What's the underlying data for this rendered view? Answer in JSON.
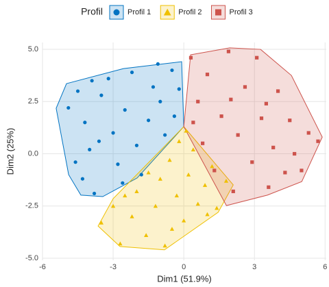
{
  "chart_data": {
    "type": "scatter",
    "legend_title": "Profil",
    "xlabel": "Dim1 (51.9%)",
    "ylabel": "Dim2 (25%)",
    "xlim": [
      -6,
      6.05
    ],
    "ylim": [
      -5.1,
      5.33
    ],
    "xticks": [
      -6,
      -3,
      0,
      3,
      6
    ],
    "yticks": [
      {
        "value": -5,
        "label": "-5.0"
      },
      {
        "value": -2.5,
        "label": "-2.5"
      },
      {
        "value": 0,
        "label": "0.0"
      },
      {
        "value": 2.5,
        "label": "2.5"
      },
      {
        "value": 5,
        "label": "5.0"
      }
    ],
    "grid": true,
    "legend": "top",
    "series": [
      {
        "name": "Profil 1",
        "color": "#0073C2",
        "shape": "circle",
        "x": [
          -4.9,
          -4.5,
          -4.2,
          -4.0,
          -4.3,
          -3.8,
          -3.5,
          -3.2,
          -3.0,
          -2.8,
          -2.5,
          -2.2,
          -2.0,
          -1.8,
          -1.5,
          -1.3,
          -1.0,
          -0.8,
          -0.5,
          -0.4,
          -0.2,
          -3.6,
          -2.6,
          -4.6,
          -1.1,
          -3.9
        ],
        "y": [
          2.2,
          3.0,
          1.5,
          0.2,
          -1.2,
          -1.9,
          2.8,
          3.6,
          1.0,
          -0.5,
          2.1,
          3.9,
          0.4,
          -1.0,
          1.6,
          3.2,
          2.5,
          0.9,
          4.0,
          1.8,
          3.1,
          0.6,
          -1.4,
          -0.4,
          4.3,
          3.5
        ],
        "hull_x": [
          -4.98,
          -2.56,
          -0.09,
          0,
          -1.98,
          -3.44,
          -4.37,
          -4.89,
          -5.42
        ],
        "hull_y": [
          3.36,
          4.08,
          4.41,
          1.3,
          -1.16,
          -2.05,
          -1.98,
          -1.0,
          2.18
        ]
      },
      {
        "name": "Profil 2",
        "color": "#EFC000",
        "shape": "triangle",
        "x": [
          -3.5,
          -3.0,
          -2.7,
          -2.2,
          -2.0,
          -1.6,
          -1.2,
          -1.0,
          -0.8,
          -0.6,
          -0.3,
          -0.2,
          0.0,
          0.2,
          0.4,
          0.6,
          0.9,
          1.2,
          1.4,
          1.8,
          -1.5,
          -2.5,
          0.1,
          -0.5,
          1.0
        ],
        "y": [
          -3.3,
          -2.5,
          -4.3,
          -3.0,
          -1.8,
          -3.9,
          -2.5,
          -1.2,
          -4.4,
          -0.3,
          -2.0,
          0.6,
          -3.2,
          -1.0,
          0.2,
          -2.4,
          -1.5,
          -0.6,
          -2.6,
          -1.3,
          -0.9,
          -2.0,
          1.1,
          -3.6,
          -2.9
        ],
        "hull_x": [
          0,
          2.1,
          1.46,
          -0.82,
          -2.71,
          -3.64,
          -3.0
        ],
        "hull_y": [
          1.3,
          -1.49,
          -2.8,
          -4.6,
          -4.44,
          -3.46,
          -2.15
        ]
      },
      {
        "name": "Profil 3",
        "color": "#CD534C",
        "shape": "square",
        "x": [
          0.3,
          0.6,
          0.8,
          1.0,
          1.3,
          1.6,
          1.9,
          2.1,
          2.3,
          2.6,
          2.9,
          3.1,
          3.3,
          3.6,
          3.8,
          4.0,
          4.3,
          4.5,
          4.7,
          5.0,
          5.3,
          5.7,
          0.4,
          2.0,
          3.5
        ],
        "y": [
          4.6,
          2.5,
          0.5,
          3.8,
          -0.8,
          1.8,
          4.9,
          -1.8,
          0.9,
          3.2,
          -0.4,
          4.6,
          1.7,
          -1.6,
          0.3,
          3.0,
          -0.9,
          1.6,
          0.0,
          -0.8,
          1.0,
          0.6,
          1.5,
          2.6,
          2.4
        ],
        "hull_x": [
          0.29,
          1.95,
          3.26,
          4.57,
          5.88,
          5.01,
          3.55,
          1.81,
          0
        ],
        "hull_y": [
          4.74,
          5.07,
          5.0,
          3.75,
          0.8,
          -1.33,
          -1.98,
          -2.48,
          1.3
        ]
      }
    ]
  }
}
